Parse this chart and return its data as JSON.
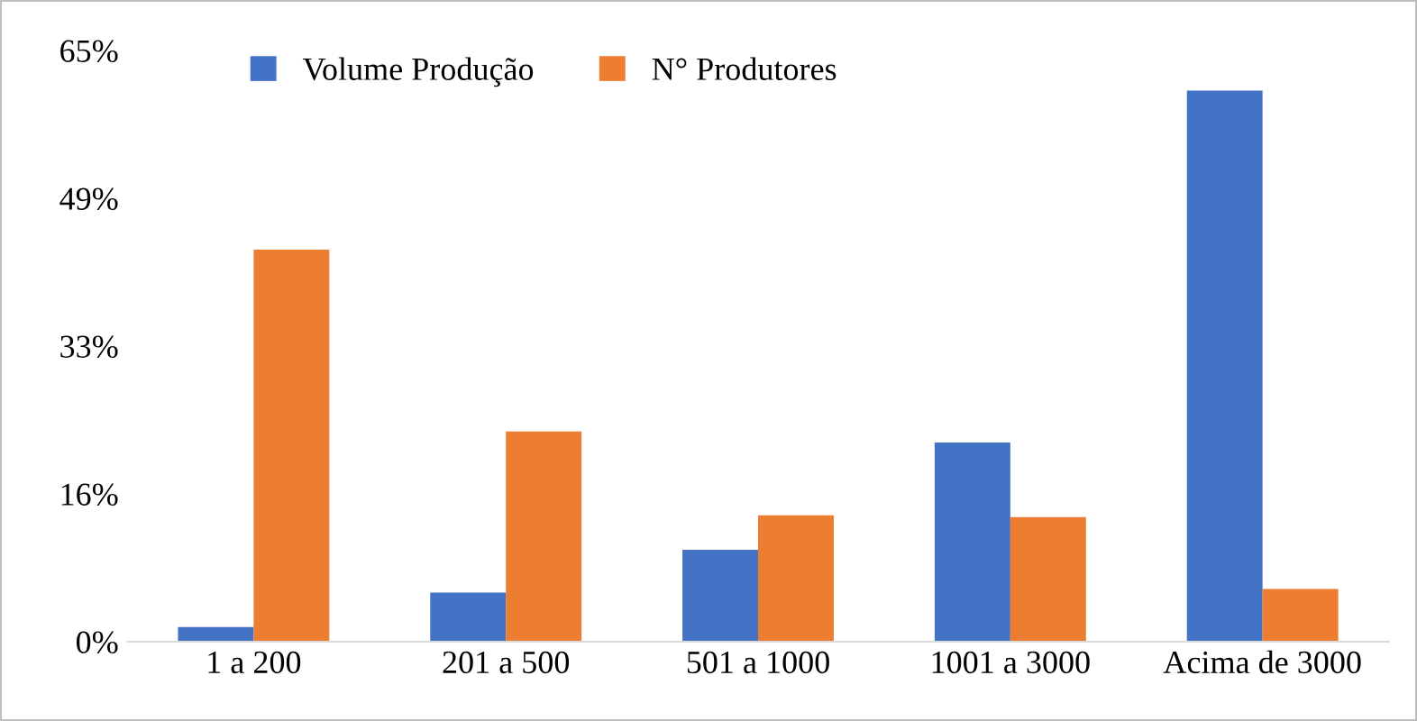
{
  "chart_data": {
    "type": "bar",
    "categories": [
      "1 a 200",
      "201 a 500",
      "501 a 1000",
      "1001 a 3000",
      "Acima de 3000"
    ],
    "series": [
      {
        "name": "Volume Produção",
        "color": "#4472c4",
        "values": [
          1.6,
          5.4,
          10.1,
          21.9,
          60.6
        ]
      },
      {
        "name": "N° Produtores",
        "color": "#ed7d31",
        "values": [
          43.1,
          23.1,
          13.9,
          13.7,
          5.8
        ]
      }
    ],
    "ylim": [
      0,
      65
    ],
    "yticks": [
      {
        "value": 0,
        "label": "0%"
      },
      {
        "value": 16.25,
        "label": "16%"
      },
      {
        "value": 32.5,
        "label": "33%"
      },
      {
        "value": 48.75,
        "label": "49%"
      },
      {
        "value": 65,
        "label": "65%"
      }
    ],
    "grid": false,
    "legend": "top"
  }
}
